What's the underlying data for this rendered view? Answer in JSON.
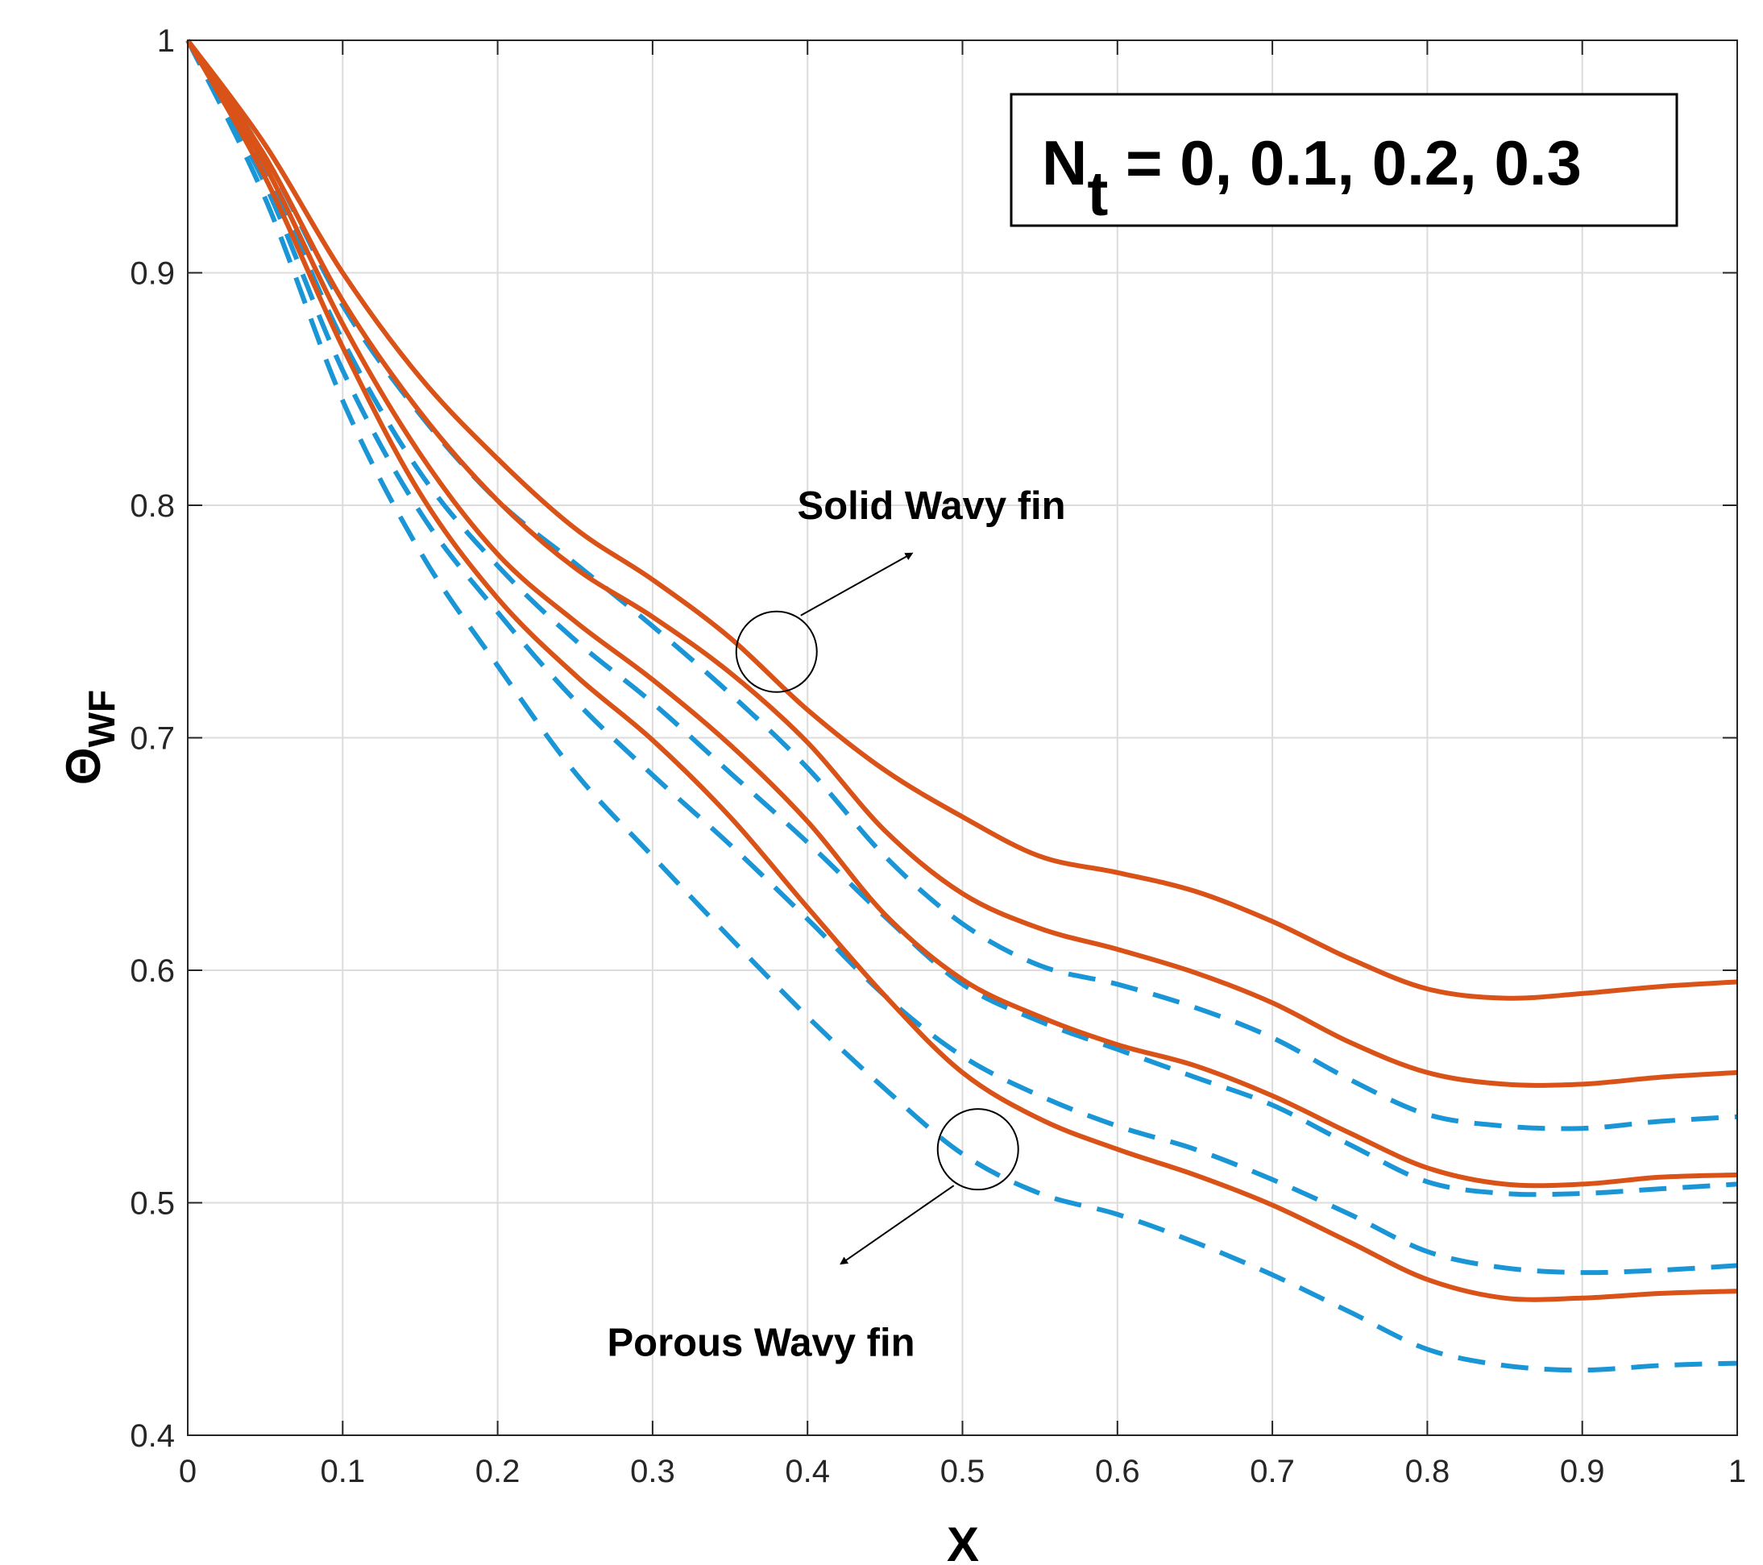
{
  "chart_data": {
    "type": "line",
    "title": "",
    "xlabel": "X",
    "ylabel": "Θ",
    "ylabel_subscript": "WF",
    "xlim": [
      0,
      1
    ],
    "ylim": [
      0.4,
      1
    ],
    "grid": true,
    "xticks": [
      "0",
      "0.1",
      "0.2",
      "0.3",
      "0.4",
      "0.5",
      "0.6",
      "0.7",
      "0.8",
      "0.9",
      "1"
    ],
    "yticks": [
      "0.4",
      "0.5",
      "0.6",
      "0.7",
      "0.8",
      "0.9",
      "1"
    ],
    "legend_box": {
      "symbol": "N",
      "subscript": "t",
      "values_text": " = 0, 0.1, 0.2, 0.3"
    },
    "annotations": [
      {
        "text": "Solid Wavy fin",
        "at": [
          0.38,
          0.737
        ],
        "text_pos": [
          0.48,
          0.8
        ]
      },
      {
        "text": "Porous Wavy fin",
        "at": [
          0.51,
          0.523
        ],
        "text_pos": [
          0.37,
          0.44
        ]
      }
    ],
    "series": [
      {
        "name": "Solid Wavy fin, Nt = 0",
        "style": "solid",
        "color": "#d95319",
        "x": [
          0,
          0.05,
          0.1,
          0.15,
          0.2,
          0.25,
          0.3,
          0.35,
          0.4,
          0.45,
          0.5,
          0.55,
          0.6,
          0.65,
          0.7,
          0.75,
          0.8,
          0.85,
          0.9,
          0.95,
          1.0
        ],
        "y": [
          1.0,
          0.955,
          0.9,
          0.855,
          0.82,
          0.79,
          0.768,
          0.743,
          0.712,
          0.686,
          0.666,
          0.649,
          0.642,
          0.634,
          0.621,
          0.605,
          0.592,
          0.588,
          0.59,
          0.593,
          0.595
        ]
      },
      {
        "name": "Solid Wavy fin, Nt = 0.1",
        "style": "solid",
        "color": "#d95319",
        "x": [
          0,
          0.05,
          0.1,
          0.15,
          0.2,
          0.25,
          0.3,
          0.35,
          0.4,
          0.45,
          0.5,
          0.55,
          0.6,
          0.65,
          0.7,
          0.75,
          0.8,
          0.85,
          0.9,
          0.95,
          1.0
        ],
        "y": [
          1.0,
          0.95,
          0.888,
          0.84,
          0.802,
          0.773,
          0.752,
          0.728,
          0.698,
          0.66,
          0.633,
          0.618,
          0.609,
          0.599,
          0.586,
          0.569,
          0.556,
          0.551,
          0.551,
          0.554,
          0.556
        ]
      },
      {
        "name": "Solid Wavy fin, Nt = 0.2",
        "style": "solid",
        "color": "#d95319",
        "x": [
          0,
          0.05,
          0.1,
          0.15,
          0.2,
          0.25,
          0.3,
          0.35,
          0.4,
          0.45,
          0.5,
          0.55,
          0.6,
          0.65,
          0.7,
          0.75,
          0.8,
          0.85,
          0.9,
          0.95,
          1.0
        ],
        "y": [
          1.0,
          0.946,
          0.878,
          0.822,
          0.779,
          0.75,
          0.725,
          0.697,
          0.664,
          0.624,
          0.596,
          0.58,
          0.568,
          0.559,
          0.546,
          0.53,
          0.515,
          0.508,
          0.508,
          0.511,
          0.512
        ]
      },
      {
        "name": "Solid Wavy fin, Nt = 0.3",
        "style": "solid",
        "color": "#d95319",
        "x": [
          0,
          0.05,
          0.1,
          0.15,
          0.2,
          0.25,
          0.3,
          0.35,
          0.4,
          0.45,
          0.5,
          0.55,
          0.6,
          0.65,
          0.7,
          0.75,
          0.8,
          0.85,
          0.9,
          0.95,
          1.0
        ],
        "y": [
          1.0,
          0.941,
          0.868,
          0.805,
          0.76,
          0.727,
          0.699,
          0.666,
          0.627,
          0.589,
          0.556,
          0.536,
          0.523,
          0.512,
          0.499,
          0.483,
          0.467,
          0.459,
          0.459,
          0.461,
          0.462
        ]
      },
      {
        "name": "Porous Wavy fin, Nt = 0",
        "style": "dashed",
        "color": "#1a96d6",
        "x": [
          0,
          0.05,
          0.1,
          0.15,
          0.2,
          0.25,
          0.3,
          0.35,
          0.4,
          0.45,
          0.5,
          0.55,
          0.6,
          0.65,
          0.7,
          0.75,
          0.8,
          0.85,
          0.9,
          0.95,
          1.0
        ],
        "y": [
          1.0,
          0.95,
          0.886,
          0.839,
          0.802,
          0.775,
          0.748,
          0.719,
          0.687,
          0.649,
          0.62,
          0.602,
          0.594,
          0.584,
          0.571,
          0.553,
          0.538,
          0.533,
          0.532,
          0.535,
          0.537
        ]
      },
      {
        "name": "Porous Wavy fin, Nt = 0.1",
        "style": "dashed",
        "color": "#1a96d6",
        "x": [
          0,
          0.05,
          0.1,
          0.15,
          0.2,
          0.25,
          0.3,
          0.35,
          0.4,
          0.45,
          0.5,
          0.55,
          0.6,
          0.65,
          0.7,
          0.75,
          0.8,
          0.85,
          0.9,
          0.95,
          1.0
        ],
        "y": [
          1.0,
          0.944,
          0.871,
          0.814,
          0.774,
          0.742,
          0.715,
          0.685,
          0.655,
          0.623,
          0.594,
          0.578,
          0.566,
          0.554,
          0.542,
          0.525,
          0.509,
          0.504,
          0.504,
          0.506,
          0.508
        ]
      },
      {
        "name": "Porous Wavy fin, Nt = 0.2",
        "style": "dashed",
        "color": "#1a96d6",
        "x": [
          0,
          0.05,
          0.1,
          0.15,
          0.2,
          0.25,
          0.3,
          0.35,
          0.4,
          0.45,
          0.5,
          0.55,
          0.6,
          0.65,
          0.7,
          0.75,
          0.8,
          0.85,
          0.9,
          0.95,
          1.0
        ],
        "y": [
          1.0,
          0.938,
          0.858,
          0.797,
          0.754,
          0.716,
          0.684,
          0.654,
          0.622,
          0.589,
          0.563,
          0.546,
          0.533,
          0.523,
          0.51,
          0.495,
          0.479,
          0.472,
          0.47,
          0.471,
          0.473
        ]
      },
      {
        "name": "Porous Wavy fin, Nt = 0.3",
        "style": "dashed",
        "color": "#1a96d6",
        "x": [
          0,
          0.05,
          0.1,
          0.15,
          0.2,
          0.25,
          0.3,
          0.35,
          0.4,
          0.45,
          0.5,
          0.55,
          0.6,
          0.65,
          0.7,
          0.75,
          0.8,
          0.85,
          0.9,
          0.95,
          1.0
        ],
        "y": [
          1.0,
          0.932,
          0.845,
          0.78,
          0.731,
          0.685,
          0.649,
          0.614,
          0.58,
          0.549,
          0.521,
          0.504,
          0.495,
          0.483,
          0.469,
          0.453,
          0.437,
          0.43,
          0.428,
          0.43,
          0.431
        ]
      }
    ]
  }
}
